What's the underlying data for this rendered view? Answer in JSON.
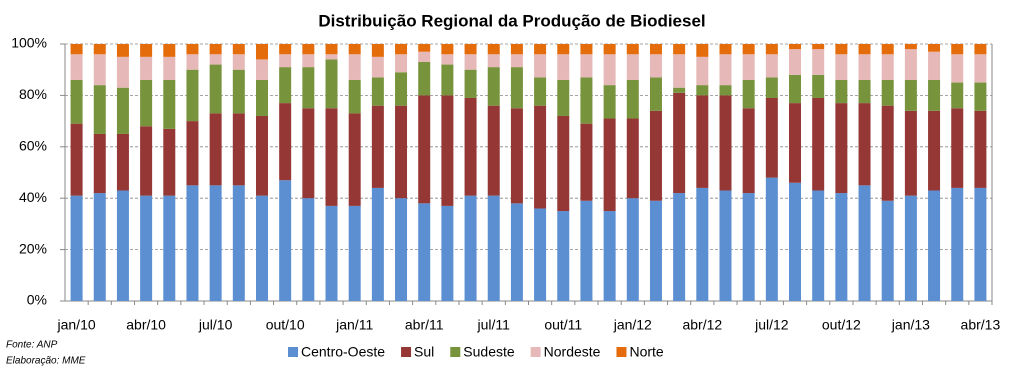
{
  "chart_data": {
    "type": "stacked_bar",
    "title": "Distribuição Regional da Produção de Biodiesel",
    "categories": [
      "jan/10",
      null,
      null,
      "abr/10",
      null,
      null,
      "jul/10",
      null,
      null,
      "out/10",
      null,
      null,
      "jan/11",
      null,
      null,
      "abr/11",
      null,
      null,
      "jul/11",
      null,
      null,
      "out/11",
      null,
      null,
      "jan/12",
      null,
      null,
      "abr/12",
      null,
      null,
      "jul/12",
      null,
      null,
      "out/12",
      null,
      null,
      "jan/13",
      null,
      null,
      "abr/13"
    ],
    "series": [
      {
        "name": "Centro-Oeste",
        "color": "#5b8fd2",
        "values": [
          41,
          42,
          43,
          41,
          41,
          45,
          45,
          45,
          41,
          47,
          40,
          37,
          37,
          44,
          40,
          38,
          37,
          41,
          41,
          38,
          36,
          35,
          39,
          35,
          40,
          39,
          42,
          44,
          43,
          42,
          48,
          46,
          43,
          42,
          45,
          39,
          41,
          43,
          44,
          44
        ]
      },
      {
        "name": "Sul",
        "color": "#953735",
        "values": [
          28,
          23,
          22,
          27,
          26,
          25,
          28,
          28,
          31,
          30,
          35,
          38,
          36,
          32,
          36,
          42,
          43,
          38,
          35,
          37,
          40,
          37,
          30,
          36,
          31,
          35,
          39,
          36,
          37,
          33,
          31,
          31,
          36,
          35,
          32,
          37,
          33,
          31,
          31,
          30
        ]
      },
      {
        "name": "Sudeste",
        "color": "#77933c",
        "values": [
          17,
          19,
          18,
          18,
          19,
          20,
          19,
          17,
          14,
          14,
          16,
          19,
          13,
          11,
          13,
          13,
          12,
          11,
          15,
          16,
          11,
          14,
          18,
          13,
          15,
          13,
          2,
          4,
          4,
          11,
          8,
          11,
          9,
          9,
          9,
          10,
          12,
          12,
          10,
          11
        ]
      },
      {
        "name": "Nordeste",
        "color": "#e6b9b8",
        "values": [
          10,
          12,
          12,
          9,
          9,
          6,
          4,
          6,
          8,
          5,
          5,
          2,
          10,
          8,
          7,
          4,
          4,
          6,
          5,
          5,
          9,
          10,
          9,
          12,
          10,
          9,
          13,
          11,
          12,
          10,
          9,
          10,
          10,
          10,
          10,
          10,
          12,
          11,
          11,
          11
        ]
      },
      {
        "name": "Norte",
        "color": "#e46c0a",
        "values": [
          4,
          4,
          5,
          5,
          5,
          4,
          4,
          4,
          6,
          4,
          4,
          4,
          4,
          5,
          4,
          3,
          4,
          4,
          4,
          4,
          4,
          4,
          4,
          4,
          4,
          4,
          4,
          5,
          4,
          4,
          4,
          2,
          2,
          4,
          4,
          4,
          2,
          3,
          4,
          4
        ]
      }
    ],
    "ylim": [
      0,
      100
    ],
    "yticks": [
      {
        "value": 0,
        "label": "0%"
      },
      {
        "value": 20,
        "label": "20%"
      },
      {
        "value": 40,
        "label": "40%"
      },
      {
        "value": 60,
        "label": "60%"
      },
      {
        "value": 80,
        "label": "80%"
      },
      {
        "value": 100,
        "label": "100%"
      }
    ],
    "grid": true,
    "legend": "bottom"
  },
  "source": {
    "line1": "Fonte: ANP",
    "line2": "Elaboração: MME"
  }
}
